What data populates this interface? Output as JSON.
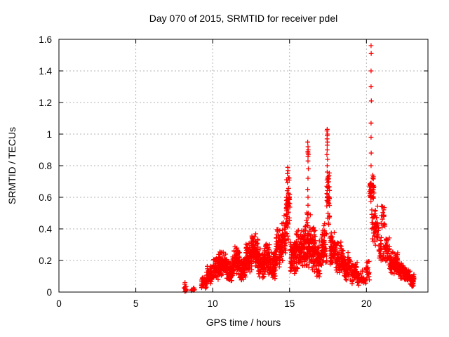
{
  "chart_data": {
    "type": "scatter",
    "title": "Day 070 of 2015, SRMTID for receiver pdel",
    "xlabel": "GPS time / hours",
    "ylabel": "SRMTID / TECUs",
    "xlim": [
      0,
      24
    ],
    "ylim": [
      0,
      1.6
    ],
    "x_ticks": [
      0,
      5,
      10,
      15,
      20
    ],
    "x_tick_labels": [
      "0",
      "5",
      "10",
      "15",
      "20"
    ],
    "y_ticks": [
      0,
      0.2,
      0.4,
      0.6,
      0.8,
      1.0,
      1.2,
      1.4,
      1.6
    ],
    "y_tick_labels": [
      "0",
      "0.2",
      "0.4",
      "0.6",
      "0.8",
      "1",
      "1.2",
      "1.4",
      "1.6"
    ],
    "grid": true,
    "legend": "none",
    "marker": "plus",
    "marker_color": "#ff0000",
    "grid_color": "#b3b3b3",
    "frame_color": "#000000",
    "background": "#ffffff",
    "series_name": "SRMTID",
    "data_start_hour": 8.15,
    "data_end_hour": 23.1,
    "seed": 20150070,
    "notable_points": [
      [
        8.2,
        0.06
      ],
      [
        8.18,
        0.05
      ],
      [
        14.88,
        0.79
      ],
      [
        14.9,
        0.77
      ],
      [
        14.86,
        0.75
      ],
      [
        16.18,
        0.95
      ],
      [
        16.2,
        0.92
      ],
      [
        16.21,
        0.9
      ],
      [
        16.19,
        0.89
      ],
      [
        16.2,
        0.88
      ],
      [
        16.22,
        0.87
      ],
      [
        16.2,
        0.86
      ],
      [
        16.2,
        0.83
      ],
      [
        16.22,
        0.78
      ],
      [
        16.2,
        0.72
      ],
      [
        16.18,
        0.65
      ],
      [
        16.2,
        0.6
      ],
      [
        16.2,
        0.55
      ],
      [
        16.21,
        0.5
      ],
      [
        16.2,
        0.47
      ],
      [
        16.19,
        0.42
      ],
      [
        16.2,
        0.37
      ],
      [
        17.45,
        1.03
      ],
      [
        17.43,
        1.02
      ],
      [
        17.47,
        1.0
      ],
      [
        17.45,
        0.99
      ],
      [
        17.44,
        0.97
      ],
      [
        17.46,
        0.95
      ],
      [
        17.45,
        0.93
      ],
      [
        17.45,
        0.9
      ],
      [
        17.43,
        0.87
      ],
      [
        17.47,
        0.84
      ],
      [
        17.45,
        0.8
      ],
      [
        17.45,
        0.76
      ],
      [
        17.44,
        0.71
      ],
      [
        17.46,
        0.66
      ],
      [
        17.45,
        0.62
      ],
      [
        17.45,
        0.58
      ],
      [
        20.3,
        1.56
      ],
      [
        20.31,
        1.51
      ],
      [
        20.3,
        1.4
      ],
      [
        20.3,
        1.3
      ],
      [
        20.32,
        1.21
      ],
      [
        20.3,
        1.07
      ],
      [
        20.3,
        0.98
      ],
      [
        20.31,
        0.88
      ],
      [
        20.3,
        0.8
      ],
      [
        20.35,
        0.52
      ],
      [
        20.37,
        0.47
      ],
      [
        20.36,
        0.44
      ],
      [
        20.35,
        0.4
      ],
      [
        21.32,
        0.28
      ],
      [
        21.28,
        0.27
      ]
    ],
    "cloud_segments": [
      [
        8.12,
        8.3,
        0.0,
        0.05,
        14
      ],
      [
        8.6,
        8.82,
        0.0,
        0.03,
        12
      ],
      [
        9.25,
        9.6,
        0.01,
        0.12,
        40
      ],
      [
        9.6,
        10.0,
        0.04,
        0.17,
        55
      ],
      [
        10.0,
        10.45,
        0.07,
        0.24,
        70
      ],
      [
        10.45,
        10.9,
        0.1,
        0.27,
        75
      ],
      [
        10.9,
        11.3,
        0.05,
        0.21,
        65
      ],
      [
        11.3,
        11.75,
        0.1,
        0.29,
        75
      ],
      [
        11.75,
        12.15,
        0.06,
        0.23,
        65
      ],
      [
        12.15,
        12.55,
        0.12,
        0.34,
        80
      ],
      [
        12.55,
        12.95,
        0.14,
        0.38,
        80
      ],
      [
        12.95,
        13.35,
        0.08,
        0.28,
        70
      ],
      [
        13.35,
        13.75,
        0.1,
        0.31,
        70
      ],
      [
        13.75,
        14.1,
        0.08,
        0.26,
        60
      ],
      [
        14.1,
        14.5,
        0.14,
        0.42,
        70
      ],
      [
        14.5,
        14.78,
        0.18,
        0.5,
        45
      ],
      [
        14.78,
        15.02,
        0.3,
        0.78,
        60
      ],
      [
        15.02,
        15.35,
        0.1,
        0.36,
        55
      ],
      [
        15.35,
        15.75,
        0.1,
        0.4,
        65
      ],
      [
        15.75,
        16.05,
        0.14,
        0.46,
        60
      ],
      [
        16.05,
        16.38,
        0.1,
        0.52,
        60
      ],
      [
        16.38,
        16.72,
        0.1,
        0.44,
        60
      ],
      [
        16.72,
        17.1,
        0.06,
        0.35,
        60
      ],
      [
        17.1,
        17.42,
        0.14,
        0.45,
        55
      ],
      [
        17.42,
        17.6,
        0.35,
        0.85,
        40
      ],
      [
        17.6,
        18.0,
        0.14,
        0.4,
        65
      ],
      [
        18.0,
        18.5,
        0.09,
        0.33,
        75
      ],
      [
        18.5,
        19.0,
        0.05,
        0.26,
        65
      ],
      [
        19.0,
        19.45,
        0.04,
        0.2,
        50
      ],
      [
        19.45,
        19.95,
        0.03,
        0.15,
        28
      ],
      [
        19.95,
        20.2,
        0.05,
        0.22,
        22
      ],
      [
        20.2,
        20.5,
        0.55,
        0.75,
        40
      ],
      [
        20.35,
        20.75,
        0.27,
        0.5,
        25
      ],
      [
        20.5,
        20.8,
        0.33,
        0.55,
        25
      ],
      [
        20.95,
        21.2,
        0.37,
        0.58,
        18
      ],
      [
        20.8,
        21.5,
        0.17,
        0.36,
        60
      ],
      [
        21.5,
        22.05,
        0.1,
        0.26,
        95
      ],
      [
        22.05,
        22.45,
        0.08,
        0.2,
        75
      ],
      [
        22.45,
        22.85,
        0.05,
        0.15,
        65
      ],
      [
        22.85,
        23.1,
        0.03,
        0.12,
        40
      ]
    ]
  }
}
